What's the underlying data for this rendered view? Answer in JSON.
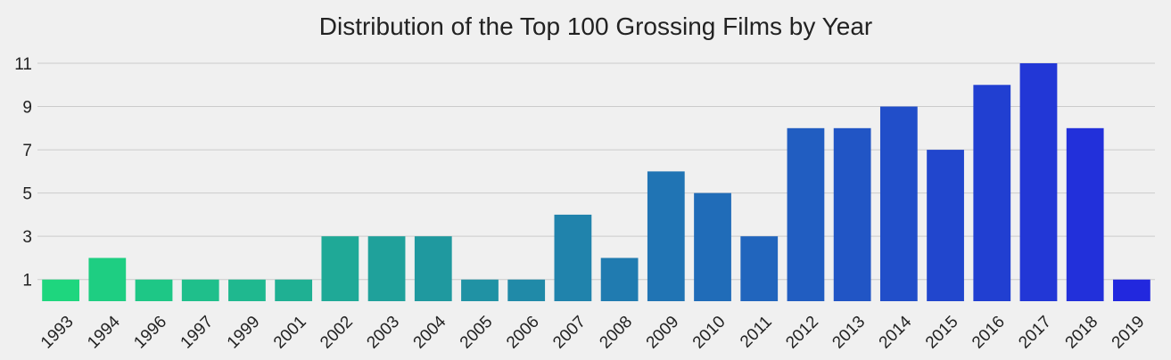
{
  "chart_data": {
    "type": "bar",
    "title": "Distribution of the Top 100 Grossing Films by Year",
    "xlabel": "",
    "ylabel": "",
    "categories": [
      "1993",
      "1994",
      "1996",
      "1997",
      "1999",
      "2001",
      "2002",
      "2003",
      "2004",
      "2005",
      "2006",
      "2007",
      "2008",
      "2009",
      "2010",
      "2011",
      "2012",
      "2013",
      "2014",
      "2015",
      "2016",
      "2017",
      "2018",
      "2019"
    ],
    "values": [
      1,
      2,
      1,
      1,
      1,
      1,
      3,
      3,
      3,
      1,
      1,
      4,
      2,
      6,
      5,
      3,
      8,
      8,
      9,
      7,
      10,
      11,
      8,
      1
    ],
    "yticks": [
      1,
      3,
      5,
      7,
      9,
      11
    ],
    "ylim": [
      0,
      11
    ],
    "grid": true,
    "colors": {
      "start": "#1ed67e",
      "end": "#2228de",
      "grid": "#cbcbcb",
      "background": "#f0f0f0"
    }
  }
}
